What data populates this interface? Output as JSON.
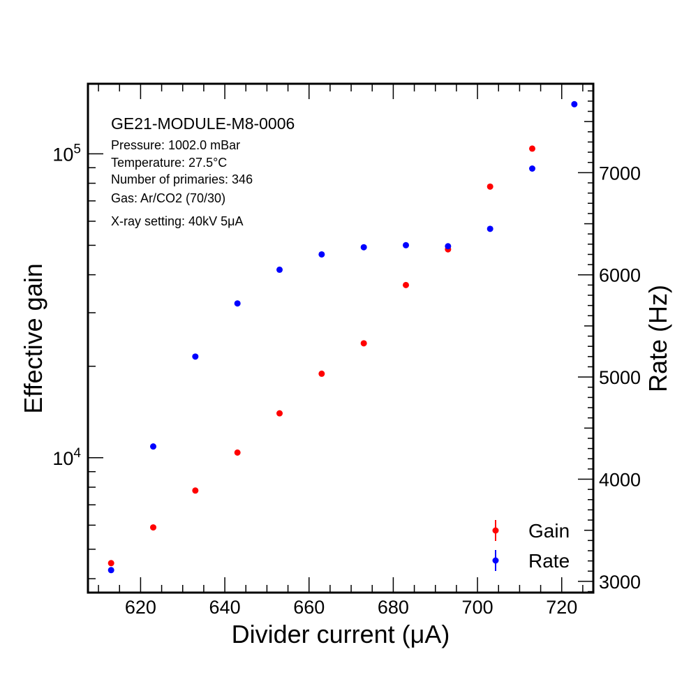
{
  "chart_data": {
    "type": "scatter",
    "xlabel": "Divider current (μA)",
    "ylabel_left": "Effective gain",
    "ylabel_right": "Rate (Hz)",
    "x_range": [
      607.5,
      727.5
    ],
    "x_ticks": [
      620,
      640,
      660,
      680,
      700,
      720
    ],
    "y_left_scale": "log",
    "y_left_range": [
      3600,
      170000
    ],
    "y_left_ticks": [
      {
        "value": 10000,
        "base": "10",
        "exp": "4"
      },
      {
        "value": 100000,
        "base": "10",
        "exp": "5"
      }
    ],
    "y_right_range": [
      2890,
      7870
    ],
    "y_right_ticks": [
      3000,
      4000,
      5000,
      6000,
      7000
    ],
    "annotations": {
      "title": "GE21-MODULE-M8-0006",
      "lines": [
        "Pressure: 1002.0 mBar",
        "Temperature: 27.5°C",
        "Number of primaries: 346",
        "Gas: Ar/CO2 (70/30)",
        "X-ray setting: 40kV 5μA"
      ]
    },
    "legend_position": "bottom-right",
    "series": [
      {
        "name": "Gain",
        "axis": "left",
        "color": "#ff0000",
        "x": [
          613,
          623,
          633,
          643,
          653,
          663,
          673,
          683,
          693,
          703,
          713
        ],
        "y": [
          4500,
          5900,
          7800,
          10400,
          14000,
          18900,
          23800,
          37000,
          48500,
          78000,
          104000
        ]
      },
      {
        "name": "Rate",
        "axis": "right",
        "color": "#0000ff",
        "x": [
          613,
          623,
          633,
          643,
          653,
          663,
          673,
          683,
          693,
          703,
          713,
          723
        ],
        "y": [
          3110,
          4320,
          5200,
          5720,
          6050,
          6200,
          6270,
          6290,
          6280,
          6450,
          7040,
          7670
        ]
      }
    ]
  }
}
